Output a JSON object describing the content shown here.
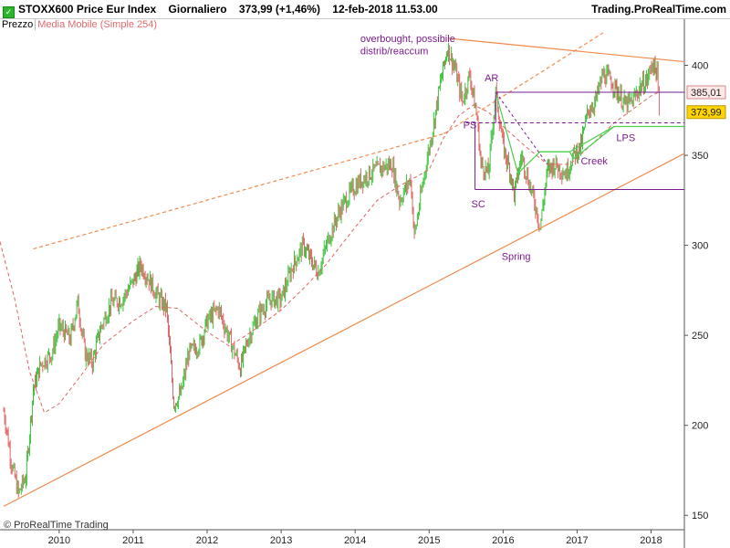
{
  "header": {
    "instrument": "STOXX600 Price Eur Index",
    "timeframe": "Giornaliero",
    "last_quote": "373,99 (+1,46%)",
    "datetime": "12-feb-2018 11.53.00",
    "provider": "Trading.ProRealTime.com"
  },
  "legend": {
    "price_label": "Prezzo",
    "ma_label": "Media Mobile (Simple 254)"
  },
  "footer": {
    "copyright": "© ProRealTime Trading"
  },
  "colors": {
    "up_candle": "#3cc43c",
    "down_candle": "#e06464",
    "moving_average": "#e06464",
    "trendline": "#f08a4b",
    "wyckoff": "#7a1d8f",
    "creek": "#4cce4c",
    "last_price_tag": "#ffd400",
    "level_tag": "#f7c5c5"
  },
  "chart_data": {
    "type": "line",
    "title": "STOXX600 Price Eur Index",
    "x_ticks": [
      "2010",
      "2011",
      "2012",
      "2013",
      "2014",
      "2015",
      "2016",
      "2017",
      "2018"
    ],
    "y_ticks": [
      150,
      200,
      250,
      300,
      350,
      400
    ],
    "x_range": [
      2009.2,
      2018.45
    ],
    "y_range": [
      142,
      418
    ],
    "grid": false,
    "legend_position": "top-left",
    "series": [
      {
        "name": "Prezzo",
        "style": "candlestick",
        "x": [
          2009.25,
          2009.3,
          2009.35,
          2009.45,
          2009.55,
          2009.65,
          2009.75,
          2009.9,
          2010.0,
          2010.15,
          2010.25,
          2010.35,
          2010.45,
          2010.55,
          2010.7,
          2010.85,
          2011.0,
          2011.1,
          2011.2,
          2011.35,
          2011.45,
          2011.55,
          2011.65,
          2011.75,
          2011.9,
          2012.0,
          2012.15,
          2012.3,
          2012.45,
          2012.55,
          2012.7,
          2012.85,
          2013.0,
          2013.15,
          2013.3,
          2013.4,
          2013.5,
          2013.65,
          2013.8,
          2013.95,
          2014.05,
          2014.2,
          2014.35,
          2014.5,
          2014.6,
          2014.75,
          2014.8,
          2014.95,
          2015.05,
          2015.15,
          2015.25,
          2015.35,
          2015.45,
          2015.55,
          2015.65,
          2015.7,
          2015.8,
          2015.9,
          2016.0,
          2016.1,
          2016.15,
          2016.25,
          2016.35,
          2016.45,
          2016.5,
          2016.6,
          2016.7,
          2016.85,
          2016.95,
          2017.05,
          2017.15,
          2017.25,
          2017.35,
          2017.45,
          2017.55,
          2017.65,
          2017.75,
          2017.85,
          2017.95,
          2018.02,
          2018.08,
          2018.11
        ],
        "values": [
          208,
          195,
          180,
          162,
          172,
          220,
          234,
          240,
          255,
          248,
          268,
          240,
          235,
          253,
          268,
          270,
          280,
          289,
          282,
          270,
          265,
          212,
          218,
          240,
          245,
          258,
          265,
          248,
          232,
          248,
          262,
          270,
          270,
          288,
          300,
          292,
          285,
          305,
          320,
          330,
          335,
          340,
          343,
          345,
          325,
          337,
          305,
          343,
          365,
          390,
          410,
          398,
          380,
          395,
          370,
          345,
          340,
          385,
          355,
          340,
          328,
          350,
          335,
          320,
          310,
          342,
          345,
          340,
          350,
          355,
          375,
          380,
          395,
          392,
          385,
          378,
          380,
          388,
          392,
          402,
          395,
          373.99
        ]
      },
      {
        "name": "Media Mobile (Simple 254)",
        "style": "dashed-line",
        "x": [
          2009.2,
          2009.4,
          2009.6,
          2009.8,
          2010.0,
          2010.3,
          2010.6,
          2011.0,
          2011.3,
          2011.6,
          2012.0,
          2012.3,
          2012.6,
          2013.0,
          2013.3,
          2013.6,
          2014.0,
          2014.3,
          2014.6,
          2015.0,
          2015.2,
          2015.4,
          2015.6,
          2015.8,
          2016.0,
          2016.3,
          2016.6,
          2016.9,
          2017.2,
          2017.5,
          2017.8,
          2018.0,
          2018.1
        ],
        "values": [
          302,
          270,
          230,
          207,
          212,
          228,
          245,
          258,
          266,
          265,
          252,
          244,
          252,
          264,
          276,
          289,
          310,
          325,
          333,
          342,
          360,
          372,
          378,
          374,
          366,
          355,
          345,
          345,
          356,
          368,
          377,
          383,
          385
        ]
      }
    ],
    "annotations": [
      {
        "text": "overbought, possibile",
        "x": 2014.07,
        "y": 413
      },
      {
        "text": "distrib/reaccum",
        "x": 2014.07,
        "y": 406
      },
      {
        "text": "AR",
        "x": 2015.75,
        "y": 391
      },
      {
        "text": "PS",
        "x": 2015.46,
        "y": 365
      },
      {
        "text": "SC",
        "x": 2015.57,
        "y": 321
      },
      {
        "text": "Spring",
        "x": 2015.98,
        "y": 292
      },
      {
        "text": "Creek",
        "x": 2017.05,
        "y": 345
      },
      {
        "text": "LPS",
        "x": 2017.53,
        "y": 358
      }
    ],
    "levels": [
      {
        "name": "AR level",
        "value": 385.01,
        "label": "385,01"
      },
      {
        "name": "last price",
        "value": 373.99,
        "label": "373,99"
      }
    ]
  }
}
